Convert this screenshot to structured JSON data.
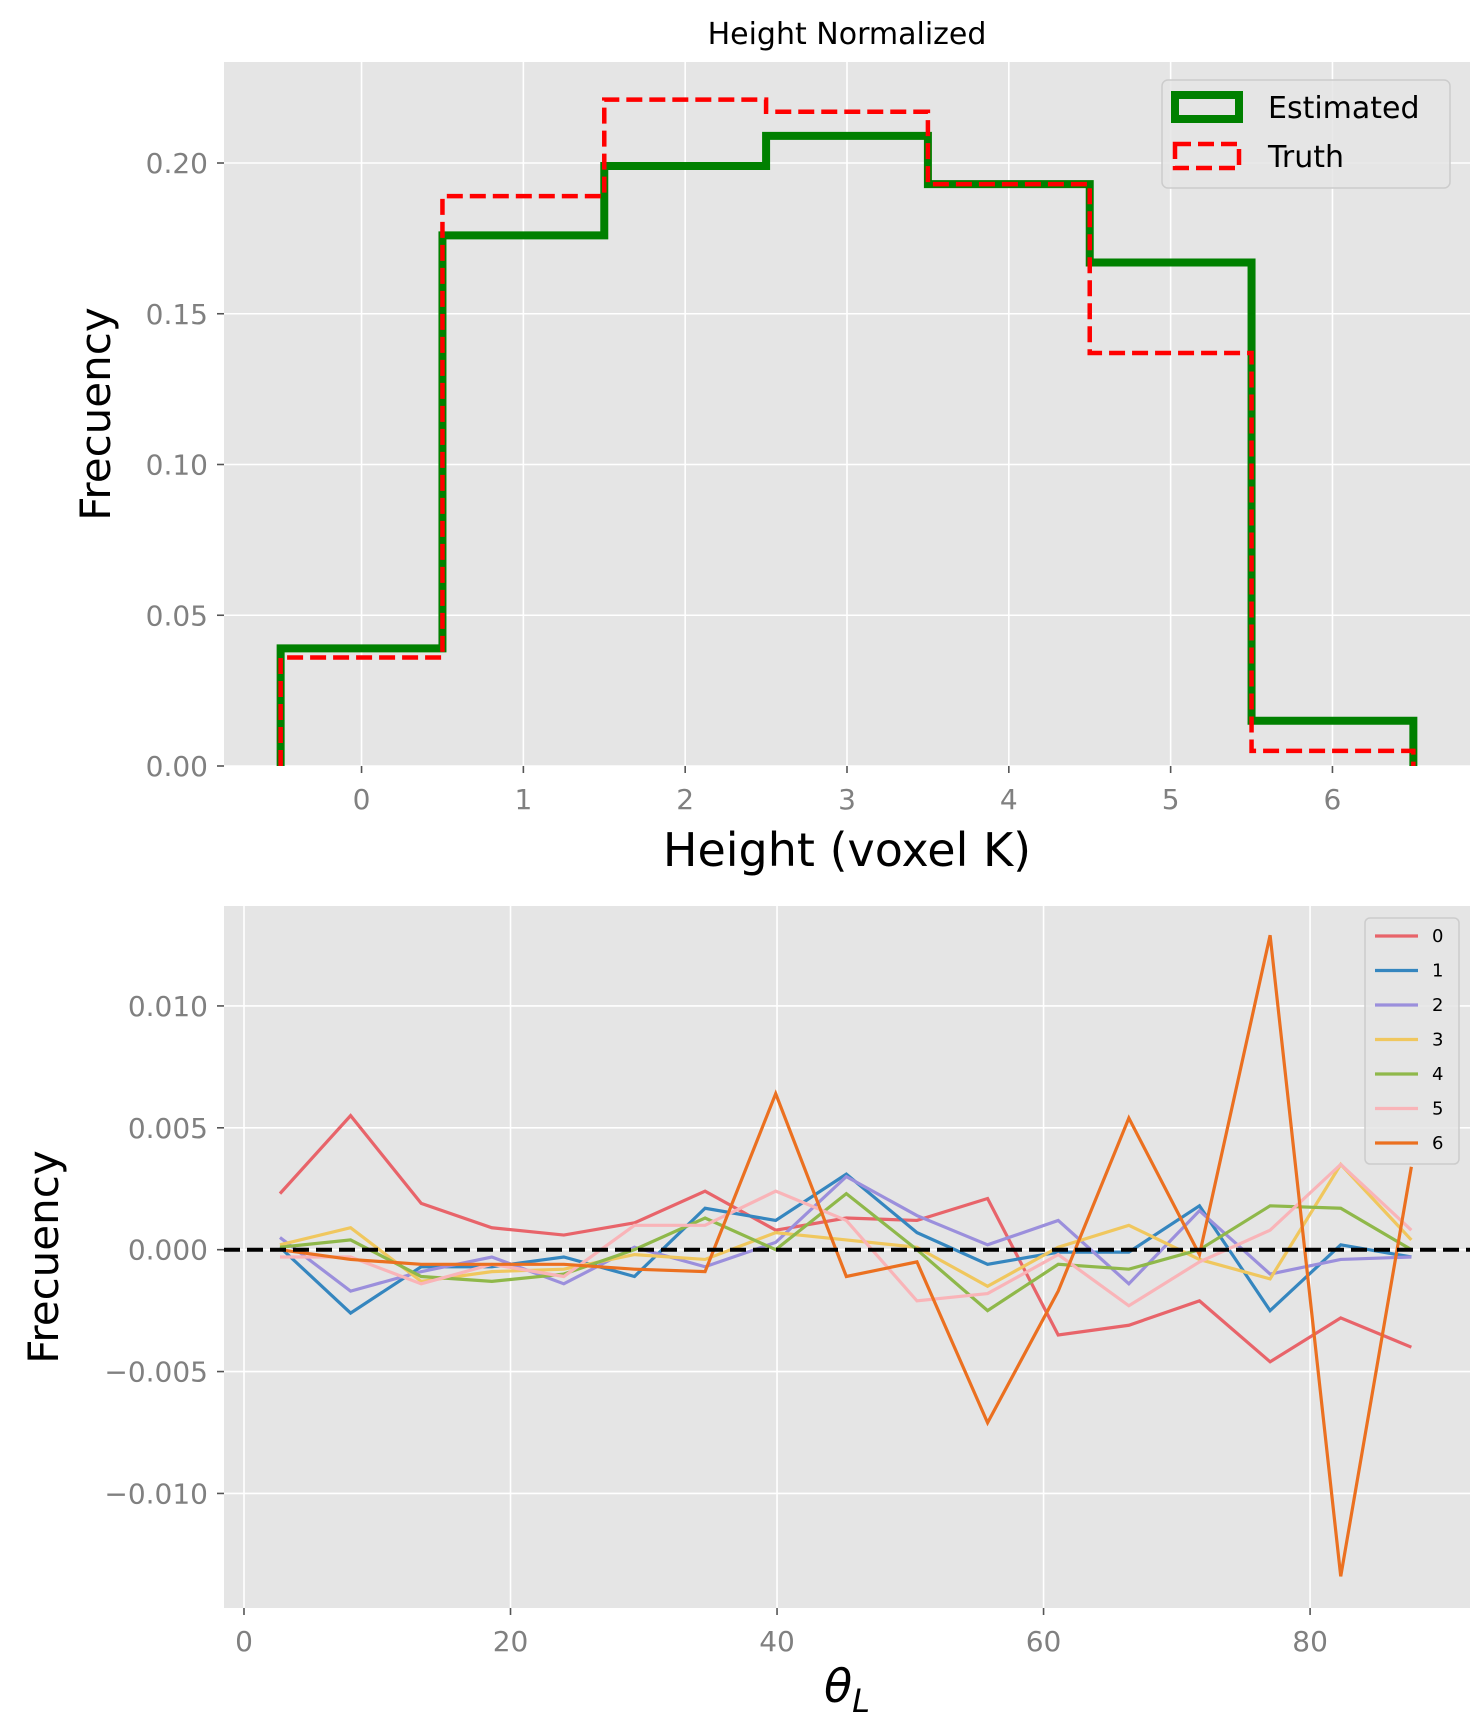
{
  "chart_data": [
    {
      "type": "step",
      "title": "Height Normalized",
      "xlabel": "Height (voxel K)",
      "ylabel": "Frecuency",
      "xlim": [
        -0.85,
        6.85
      ],
      "ylim": [
        0,
        0.2335
      ],
      "xticks": [
        0,
        1,
        2,
        3,
        4,
        5,
        6
      ],
      "xtick_labels": [
        "0",
        "1",
        "2",
        "3",
        "4",
        "5",
        "6"
      ],
      "yticks": [
        0.0,
        0.05,
        0.1,
        0.15,
        0.2
      ],
      "ytick_labels": [
        "0.00",
        "0.05",
        "0.10",
        "0.15",
        "0.20"
      ],
      "grid": true,
      "legend_position": "top-right",
      "bin_edges": [
        -0.5,
        0.5,
        1.5,
        2.5,
        3.5,
        4.5,
        5.5,
        6.5
      ],
      "series": [
        {
          "name": "Estimated",
          "color": "#008000",
          "style": "solid",
          "values": [
            0.039,
            0.176,
            0.199,
            0.209,
            0.193,
            0.167,
            0.015
          ]
        },
        {
          "name": "Truth",
          "color": "#ff0000",
          "style": "dashed",
          "values": [
            0.036,
            0.189,
            0.221,
            0.217,
            0.193,
            0.137,
            0.005
          ]
        }
      ]
    },
    {
      "type": "line",
      "title": "",
      "xlabel": "θ_L",
      "xlabel_main": "θ",
      "xlabel_sub": "L",
      "ylabel": "Frecuency",
      "xlim": [
        -1.5,
        92.0
      ],
      "ylim": [
        -0.0147,
        0.0141
      ],
      "xticks": [
        0,
        20,
        40,
        60,
        80
      ],
      "xtick_labels": [
        "0",
        "20",
        "40",
        "60",
        "80"
      ],
      "yticks": [
        -0.01,
        -0.005,
        0.0,
        0.005,
        0.01
      ],
      "ytick_labels": [
        "−0.010",
        "−0.005",
        "0.000",
        "0.005",
        "0.010"
      ],
      "grid": true,
      "legend_position": "top-right",
      "reference_line": {
        "y": 0,
        "color": "#000000",
        "style": "dashed"
      },
      "x": [
        2.7,
        8.0,
        13.3,
        18.6,
        24.0,
        29.3,
        34.6,
        39.9,
        45.2,
        50.5,
        55.8,
        61.1,
        66.4,
        71.7,
        77.0,
        82.3,
        87.6
      ],
      "series": [
        {
          "name": "0",
          "color": "#e8646a",
          "values": [
            0.0023,
            0.0055,
            0.0019,
            0.0009,
            0.0006,
            0.0011,
            0.0024,
            0.0008,
            0.0013,
            0.0012,
            0.0021,
            -0.0035,
            -0.0031,
            -0.0021,
            -0.0046,
            -0.0028,
            -0.004
          ]
        },
        {
          "name": "1",
          "color": "#3586bf",
          "values": [
            0.0001,
            -0.0026,
            -0.0007,
            -0.0007,
            -0.0003,
            -0.0011,
            0.0017,
            0.0012,
            0.0031,
            0.0007,
            -0.0006,
            -0.0001,
            -0.0001,
            0.0018,
            -0.0025,
            0.0002,
            -0.0003
          ]
        },
        {
          "name": "2",
          "color": "#9b8fdc",
          "values": [
            0.0005,
            -0.0017,
            -0.0009,
            -0.0003,
            -0.0014,
            0.0001,
            -0.0007,
            0.0003,
            0.003,
            0.0014,
            0.0002,
            0.0012,
            -0.0014,
            0.0016,
            -0.001,
            -0.0004,
            -0.0003
          ]
        },
        {
          "name": "3",
          "color": "#f0c75e",
          "values": [
            0.0002,
            0.0009,
            -0.0013,
            -0.0009,
            -0.0008,
            -0.0002,
            -0.0004,
            0.0007,
            0.0004,
            0.0001,
            -0.0015,
            0.0001,
            0.001,
            -0.0004,
            -0.0012,
            0.0035,
            0.0004
          ]
        },
        {
          "name": "4",
          "color": "#8fb84a",
          "values": [
            0.0001,
            0.0004,
            -0.0011,
            -0.0013,
            -0.001,
            0.0,
            0.0013,
            0.0,
            0.0023,
            0.0,
            -0.0025,
            -0.0006,
            -0.0008,
            0.0,
            0.0018,
            0.0017,
            0.0
          ]
        },
        {
          "name": "5",
          "color": "#f9b4b8",
          "values": [
            -0.0003,
            -0.0003,
            -0.0014,
            -0.0006,
            -0.0011,
            0.001,
            0.001,
            0.0024,
            0.0012,
            -0.0021,
            -0.0018,
            -0.0002,
            -0.0023,
            -0.0005,
            0.0008,
            0.0035,
            0.0008
          ]
        },
        {
          "name": "6",
          "color": "#eb7020",
          "values": [
            0.0,
            -0.0004,
            -0.0006,
            -0.0006,
            -0.0006,
            -0.0008,
            -0.0009,
            0.0064,
            -0.0011,
            -0.0005,
            -0.0071,
            -0.0017,
            0.0054,
            -0.0002,
            0.0129,
            -0.0134,
            0.0034
          ]
        }
      ]
    }
  ]
}
